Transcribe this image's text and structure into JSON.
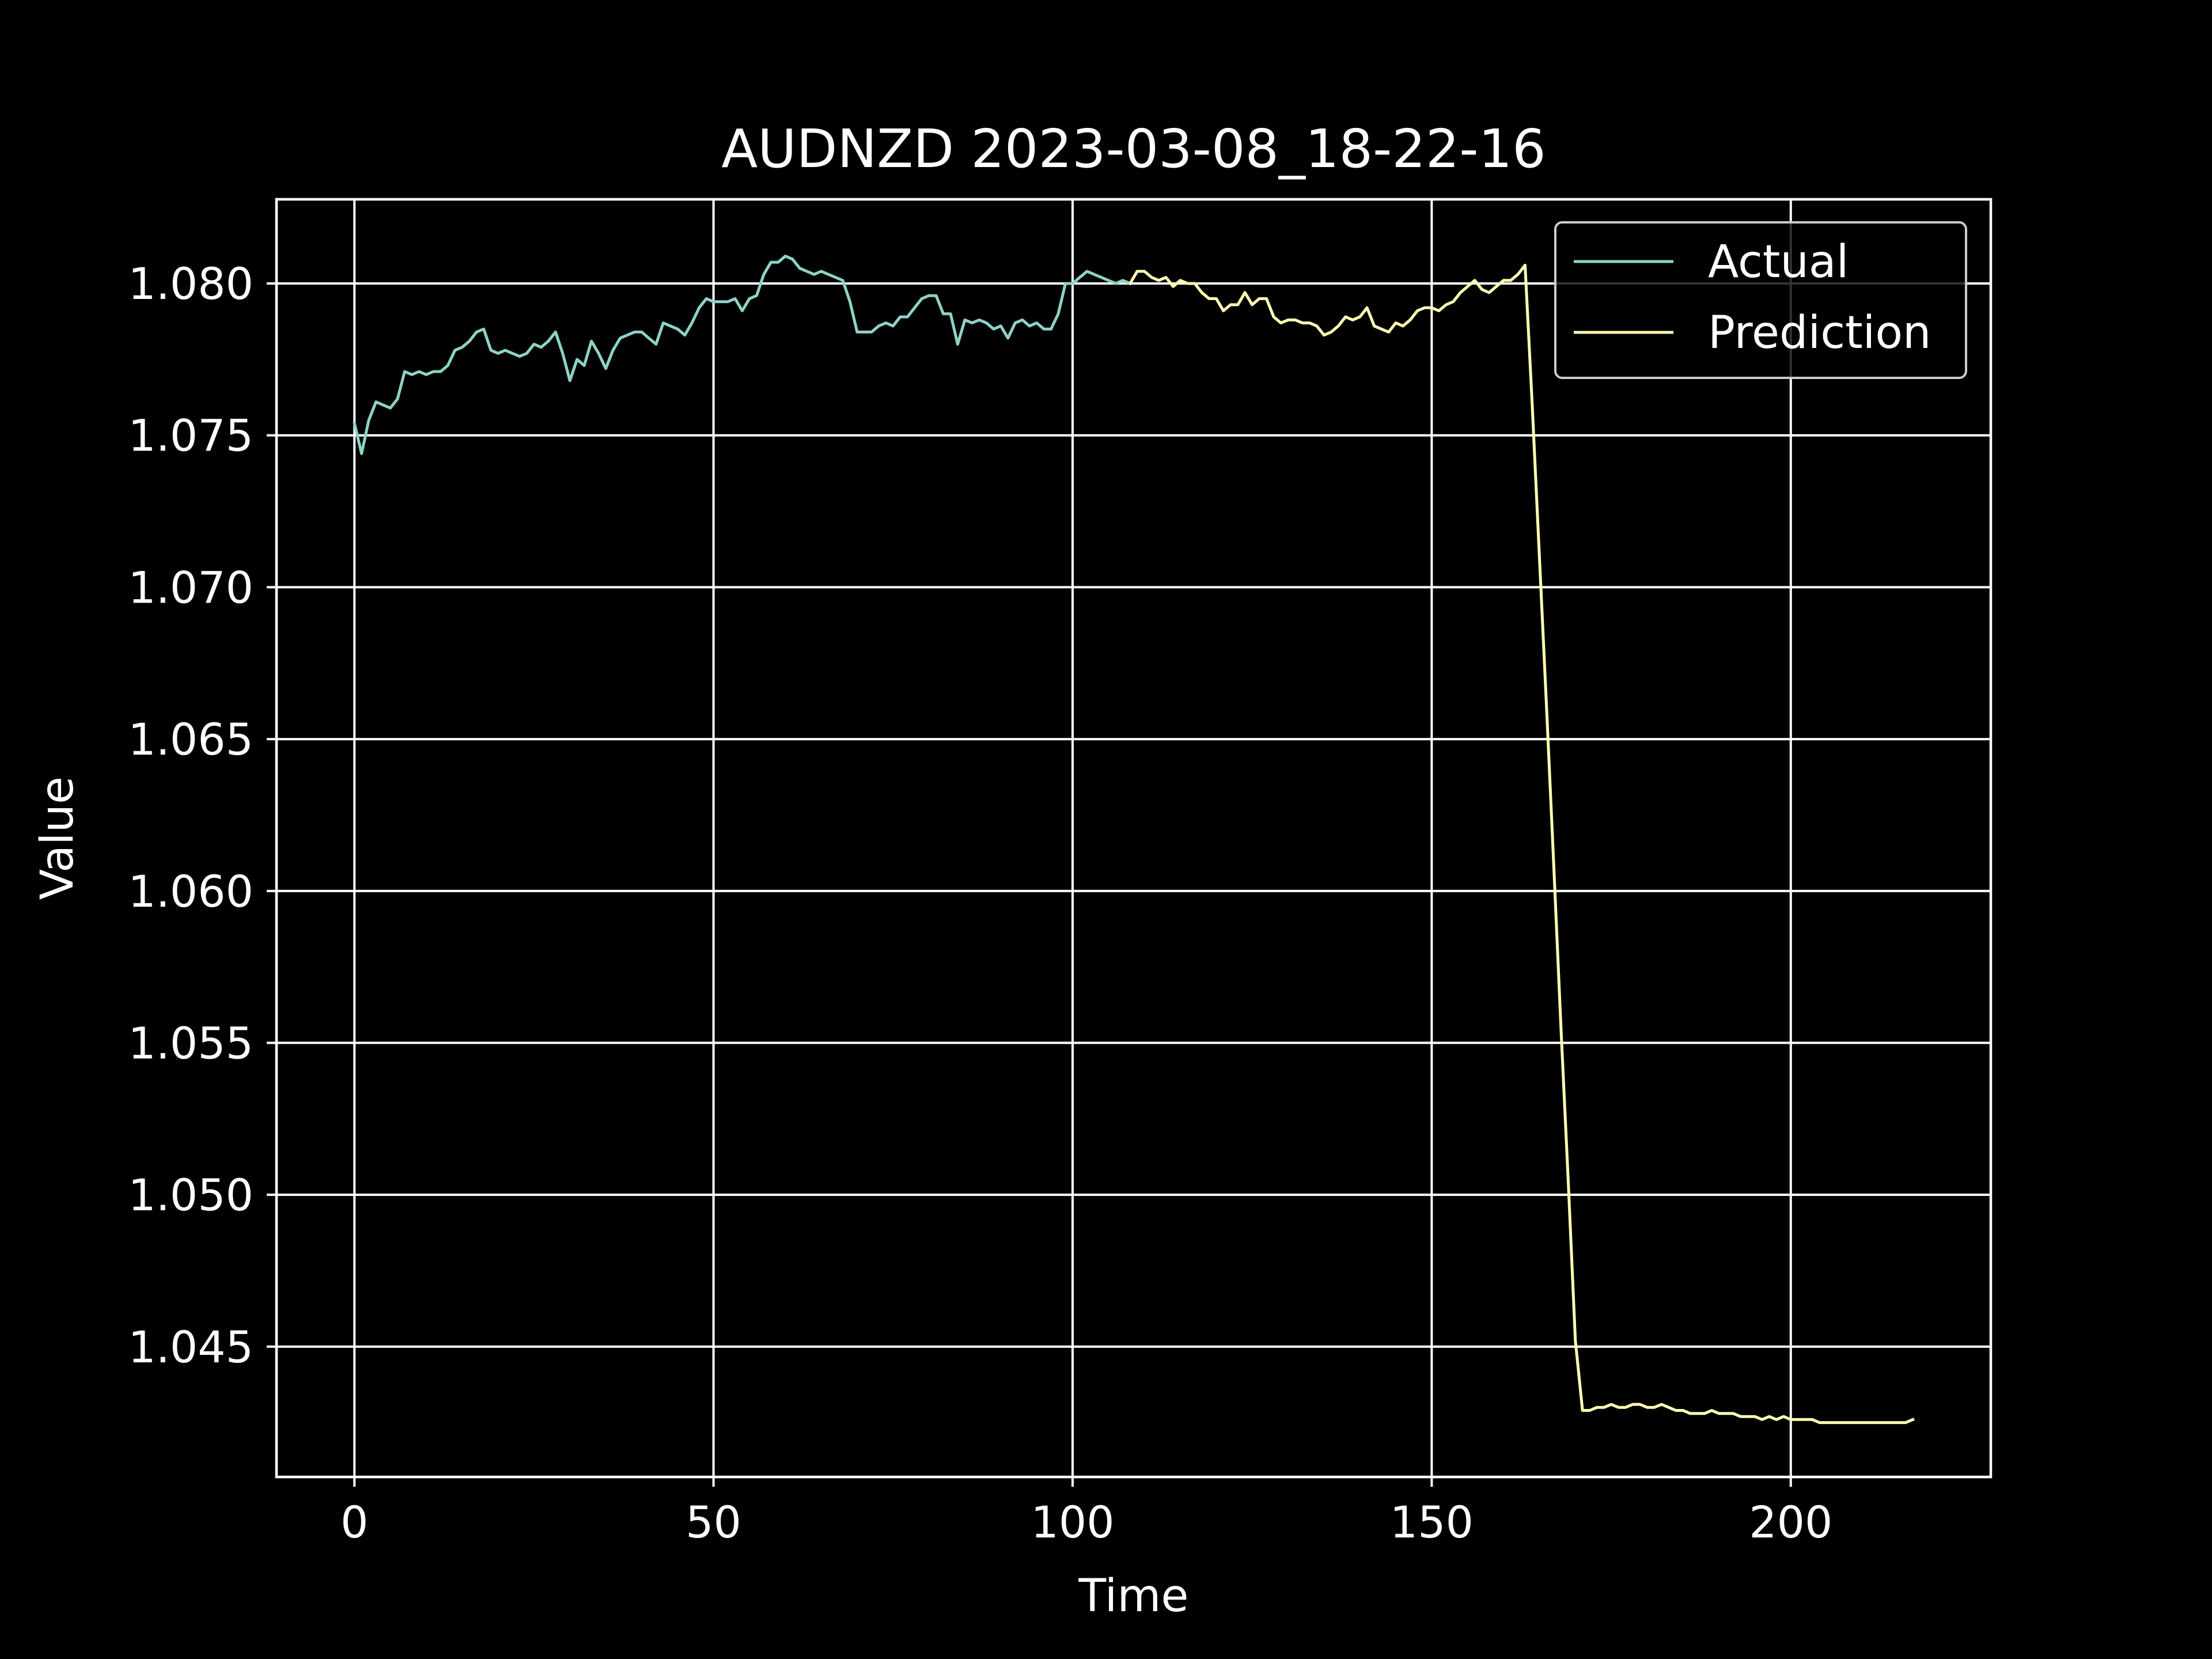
{
  "colors": {
    "background": "#000000",
    "foreground": "#ffffff",
    "actual": "#8dd3c7",
    "prediction": "#ffffb3",
    "legend_border": "#cccccc"
  },
  "chart_data": {
    "type": "line",
    "title": "AUDNZD 2023-03-08_18-22-16",
    "xlabel": "Time",
    "ylabel": "Value",
    "xlim": [
      -10.85,
      227.85
    ],
    "ylim": [
      1.04071,
      1.08277
    ],
    "xticks": [
      0,
      50,
      100,
      150,
      200
    ],
    "xtick_labels": [
      "0",
      "50",
      "100",
      "150",
      "200"
    ],
    "yticks": [
      1.045,
      1.05,
      1.055,
      1.06,
      1.065,
      1.07,
      1.075,
      1.08
    ],
    "ytick_labels": [
      "1.045",
      "1.050",
      "1.055",
      "1.060",
      "1.065",
      "1.070",
      "1.075",
      "1.080"
    ],
    "grid": true,
    "legend_position": "top-right",
    "series": [
      {
        "name": "Actual",
        "color": "#8dd3c7",
        "x_start": 0,
        "values": [
          1.0754,
          1.0744,
          1.0755,
          1.0761,
          1.076,
          1.0759,
          1.0762,
          1.0771,
          1.077,
          1.0771,
          1.077,
          1.0771,
          1.0771,
          1.0773,
          1.0778,
          1.0779,
          1.0781,
          1.0784,
          1.0785,
          1.0778,
          1.0777,
          1.0778,
          1.0777,
          1.0776,
          1.0777,
          1.078,
          1.0779,
          1.0781,
          1.0784,
          1.0777,
          1.0768,
          1.0775,
          1.0773,
          1.0781,
          1.0777,
          1.0772,
          1.0778,
          1.0782,
          1.0783,
          1.0784,
          1.0784,
          1.0782,
          1.078,
          1.0787,
          1.0786,
          1.0785,
          1.0783,
          1.0787,
          1.0792,
          1.0795,
          1.0794,
          1.0794,
          1.0794,
          1.0795,
          1.0791,
          1.0795,
          1.0796,
          1.0803,
          1.0807,
          1.0807,
          1.0809,
          1.0808,
          1.0805,
          1.0804,
          1.0803,
          1.0804,
          1.0803,
          1.0802,
          1.0801,
          1.0794,
          1.0784,
          1.0784,
          1.0784,
          1.0786,
          1.0787,
          1.0786,
          1.0789,
          1.0789,
          1.0792,
          1.0795,
          1.0796,
          1.0796,
          1.079,
          1.079,
          1.078,
          1.0788,
          1.0787,
          1.0788,
          1.0787,
          1.0785,
          1.0786,
          1.0782,
          1.0787,
          1.0788,
          1.0786,
          1.0787,
          1.0785,
          1.0785,
          1.079,
          1.08,
          1.08,
          1.0802,
          1.0804,
          1.0803,
          1.0802,
          1.0801,
          1.08,
          1.0801,
          1.08
        ]
      },
      {
        "name": "Prediction",
        "color": "#ffffb3",
        "x_start": 108,
        "values": [
          1.08,
          1.0804,
          1.0804,
          1.0802,
          1.0801,
          1.0802,
          1.0799,
          1.0801,
          1.08,
          1.08,
          1.0797,
          1.0795,
          1.0795,
          1.0791,
          1.0793,
          1.0793,
          1.0797,
          1.0793,
          1.0795,
          1.0795,
          1.0789,
          1.0787,
          1.0788,
          1.0788,
          1.0787,
          1.0787,
          1.0786,
          1.0783,
          1.0784,
          1.0786,
          1.0789,
          1.0788,
          1.0789,
          1.0792,
          1.0786,
          1.0785,
          1.0784,
          1.0787,
          1.0786,
          1.0788,
          1.0791,
          1.0792,
          1.0792,
          1.0791,
          1.0793,
          1.0794,
          1.0797,
          1.0799,
          1.0801,
          1.0798,
          1.0797,
          1.0799,
          1.0801,
          1.0801,
          1.0803,
          1.0806,
          1.076,
          1.071,
          1.066,
          1.0608,
          1.0555,
          1.0505,
          1.0452,
          1.0429,
          1.0429,
          1.043,
          1.043,
          1.0431,
          1.043,
          1.043,
          1.0431,
          1.0431,
          1.043,
          1.043,
          1.0431,
          1.043,
          1.0429,
          1.0429,
          1.0428,
          1.0428,
          1.0428,
          1.0429,
          1.0428,
          1.0428,
          1.0428,
          1.0427,
          1.0427,
          1.0427,
          1.0426,
          1.0427,
          1.0426,
          1.0427,
          1.0426,
          1.0426,
          1.0426,
          1.0426,
          1.0425,
          1.0425,
          1.0425,
          1.0425,
          1.0425,
          1.0425,
          1.0425,
          1.0425,
          1.0425,
          1.0425,
          1.0425,
          1.0425,
          1.0425,
          1.0426
        ]
      }
    ]
  }
}
